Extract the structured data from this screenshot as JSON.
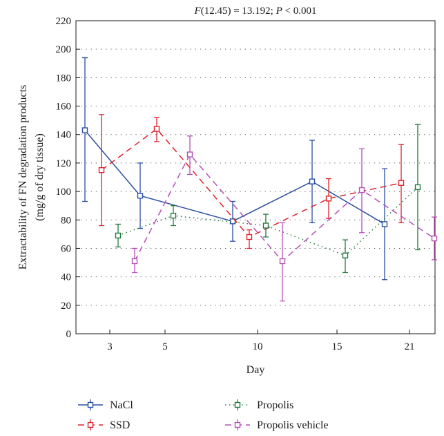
{
  "chart_data": {
    "type": "line",
    "title_parts": [
      "F",
      "(12.45) = 13.192; ",
      "P",
      " < 0.001"
    ],
    "xlabel": "Day",
    "ylabel_lines": [
      "Extractability of FN degradation products",
      "(mg/g of dry tissue)"
    ],
    "ylim": [
      0,
      220
    ],
    "yticks": [
      0,
      20,
      40,
      60,
      80,
      100,
      120,
      140,
      160,
      180,
      200,
      220
    ],
    "categories": [
      "3",
      "5",
      "10",
      "15",
      "21"
    ],
    "grid": true,
    "legend_position": "bottom",
    "series": [
      {
        "name": "NaCl",
        "color": "#2b4fa2",
        "line": "solid",
        "values": [
          143,
          97,
          79,
          107,
          77
        ],
        "lower": [
          93,
          74,
          65,
          78,
          38
        ],
        "upper": [
          194,
          120,
          93,
          136,
          116
        ]
      },
      {
        "name": "SSD",
        "color": "#e0202a",
        "line": "dashed",
        "values": [
          115,
          144,
          68,
          95,
          106
        ],
        "lower": [
          76,
          135,
          60,
          81,
          78
        ],
        "upper": [
          154,
          152,
          73,
          109,
          133
        ]
      },
      {
        "name": "Propolis",
        "color": "#1f7a3c",
        "line": "dotted",
        "values": [
          69,
          83,
          76,
          55,
          103
        ],
        "lower": [
          61,
          76,
          68,
          43,
          59
        ],
        "upper": [
          77,
          90,
          84,
          66,
          147
        ]
      },
      {
        "name": "Propolis vehicle",
        "color": "#b64fb5",
        "line": "dashed",
        "values": [
          51,
          126,
          51,
          101,
          67
        ],
        "lower": [
          43,
          112,
          23,
          71,
          52
        ],
        "upper": [
          60,
          139,
          78,
          130,
          82
        ]
      }
    ]
  }
}
